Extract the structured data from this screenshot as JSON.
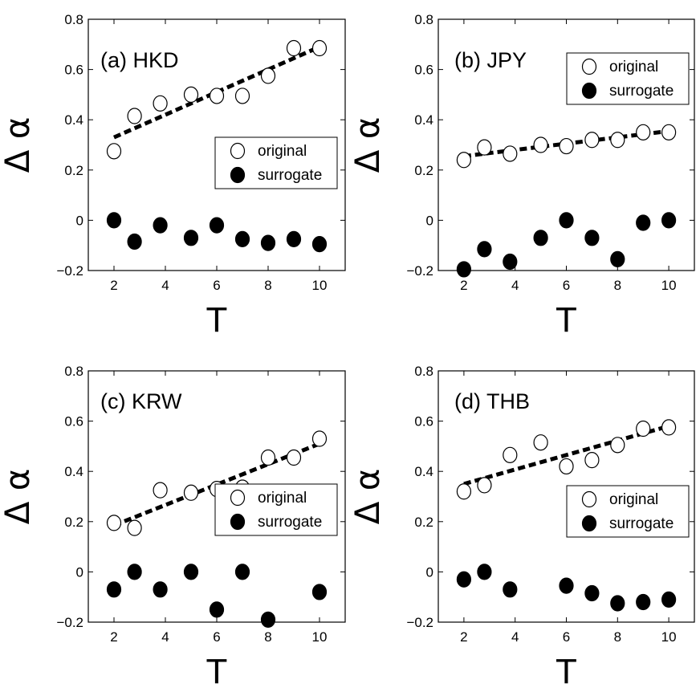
{
  "chart_data": [
    {
      "type": "scatter",
      "title": "(a) HKD",
      "xlabel": "T",
      "ylabel": "Δ α",
      "xlim": [
        1,
        11
      ],
      "ylim": [
        -0.2,
        0.8
      ],
      "xticks": [
        2,
        4,
        6,
        8,
        10
      ],
      "yticks": [
        -0.2,
        0,
        0.2,
        0.4,
        0.6,
        0.8
      ],
      "ytick_labels": [
        "−0.2",
        "0",
        "0.2",
        "0.4",
        "0.6",
        "0.8"
      ],
      "legend_position": "center-right",
      "series": [
        {
          "name": "original",
          "marker": "open-circle",
          "x": [
            2,
            2.8,
            3.8,
            5,
            6,
            7,
            8,
            9,
            10
          ],
          "y": [
            0.275,
            0.415,
            0.465,
            0.5,
            0.495,
            0.495,
            0.575,
            0.685,
            0.685
          ]
        },
        {
          "name": "surrogate",
          "marker": "filled-circle",
          "x": [
            2,
            2.8,
            3.8,
            5,
            6,
            7,
            8,
            9,
            10
          ],
          "y": [
            0.0,
            -0.085,
            -0.02,
            -0.07,
            -0.02,
            -0.075,
            -0.09,
            -0.075,
            -0.095
          ]
        }
      ],
      "fit": {
        "x": [
          2,
          10
        ],
        "y": [
          0.33,
          0.69
        ]
      }
    },
    {
      "type": "scatter",
      "title": "(b) JPY",
      "xlabel": "T",
      "ylabel": "Δ α",
      "xlim": [
        1,
        11
      ],
      "ylim": [
        -0.2,
        0.8
      ],
      "xticks": [
        2,
        4,
        6,
        8,
        10
      ],
      "yticks": [
        -0.2,
        0,
        0.2,
        0.4,
        0.6,
        0.8
      ],
      "ytick_labels": [
        "−0.2",
        "0",
        "0.2",
        "0.4",
        "0.6",
        "0.8"
      ],
      "legend_position": "top-right",
      "series": [
        {
          "name": "original",
          "marker": "open-circle",
          "x": [
            2,
            2.8,
            3.8,
            5,
            6,
            7,
            8,
            9,
            10
          ],
          "y": [
            0.24,
            0.29,
            0.265,
            0.3,
            0.295,
            0.32,
            0.32,
            0.35,
            0.35
          ]
        },
        {
          "name": "surrogate",
          "marker": "filled-circle",
          "x": [
            2,
            2.8,
            3.8,
            5,
            6,
            7,
            8,
            9,
            10
          ],
          "y": [
            -0.195,
            -0.115,
            -0.165,
            -0.07,
            0.0,
            -0.07,
            -0.155,
            -0.01,
            0.0
          ]
        }
      ],
      "fit": {
        "x": [
          2,
          10
        ],
        "y": [
          0.255,
          0.355
        ]
      }
    },
    {
      "type": "scatter",
      "title": "(c) KRW",
      "xlabel": "T",
      "ylabel": "Δ α",
      "xlim": [
        1,
        11
      ],
      "ylim": [
        -0.2,
        0.8
      ],
      "xticks": [
        2,
        4,
        6,
        8,
        10
      ],
      "yticks": [
        -0.2,
        0,
        0.2,
        0.4,
        0.6,
        0.8
      ],
      "ytick_labels": [
        "−0.2",
        "0",
        "0.2",
        "0.4",
        "0.6",
        "0.8"
      ],
      "legend_position": "center-right",
      "series": [
        {
          "name": "original",
          "marker": "open-circle",
          "x": [
            2,
            2.8,
            3.8,
            5,
            6,
            7,
            8,
            9,
            10
          ],
          "y": [
            0.195,
            0.175,
            0.325,
            0.315,
            0.33,
            0.335,
            0.455,
            0.455,
            0.53
          ]
        },
        {
          "name": "surrogate",
          "marker": "filled-circle",
          "x": [
            2,
            2.8,
            3.8,
            5,
            6,
            7,
            8,
            9,
            10
          ],
          "y": [
            -0.07,
            0.0,
            -0.07,
            0.0,
            -0.15,
            0.0,
            -0.19,
            null,
            -0.08
          ]
        }
      ],
      "fit": {
        "x": [
          2,
          10
        ],
        "y": [
          0.185,
          0.51
        ]
      }
    },
    {
      "type": "scatter",
      "title": "(d) THB",
      "xlabel": "T",
      "ylabel": "Δ α",
      "xlim": [
        1,
        11
      ],
      "ylim": [
        -0.2,
        0.8
      ],
      "xticks": [
        2,
        4,
        6,
        8,
        10
      ],
      "yticks": [
        -0.2,
        0,
        0.2,
        0.4,
        0.6,
        0.8
      ],
      "ytick_labels": [
        "−0.2",
        "0",
        "0.2",
        "0.4",
        "0.6",
        "0.8"
      ],
      "legend_position": "center-right",
      "series": [
        {
          "name": "original",
          "marker": "open-circle",
          "x": [
            2,
            2.8,
            3.8,
            5,
            6,
            7,
            8,
            9,
            10
          ],
          "y": [
            0.32,
            0.345,
            0.465,
            0.515,
            0.42,
            0.445,
            0.505,
            0.57,
            0.575
          ]
        },
        {
          "name": "surrogate",
          "marker": "filled-circle",
          "x": [
            2,
            2.8,
            3.8,
            6,
            7,
            8,
            9,
            10
          ],
          "y": [
            -0.03,
            0.0,
            -0.07,
            -0.055,
            -0.085,
            -0.125,
            -0.12,
            -0.11
          ]
        }
      ],
      "fit": {
        "x": [
          2,
          10
        ],
        "y": [
          0.35,
          0.58
        ]
      }
    }
  ]
}
